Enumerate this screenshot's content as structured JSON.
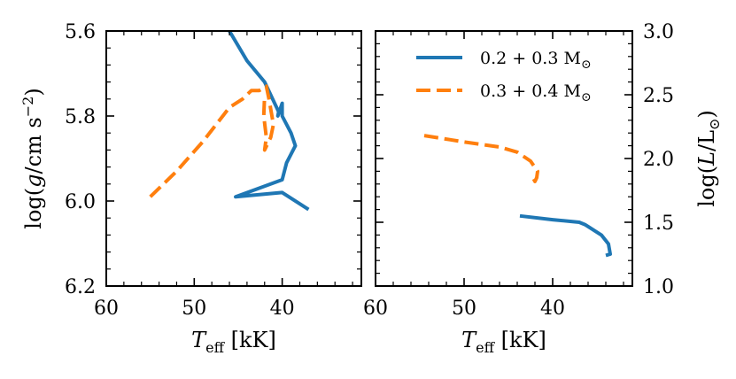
{
  "colors": {
    "blue": "#1f77b4",
    "orange": "#ff7f0e"
  },
  "chart_data": [
    {
      "type": "line",
      "panel": "left",
      "xlabel": "T_eff [kK]",
      "ylabel": "log(g / cm s^-2)",
      "xlim": [
        60,
        31
      ],
      "ylim": [
        6.2,
        5.6
      ],
      "y_inverted": true,
      "x_ticks": [
        60,
        50,
        40
      ],
      "x_tick_labels": [
        "60",
        "50",
        "40"
      ],
      "y_ticks": [
        5.6,
        5.8,
        6.0,
        6.2
      ],
      "y_tick_labels": [
        "5.6",
        "5.8",
        "6.0",
        "6.2"
      ],
      "y_tick_side": "left",
      "series": [
        {
          "color": "#1f77b4",
          "dash": "solid",
          "x": [
            37.0,
            40.0,
            45.3,
            40.0,
            39.5,
            38.5,
            39.0,
            40.0,
            40.0,
            40.5,
            40.4,
            42.0,
            44.0,
            46.0,
            48.0
          ],
          "y": [
            6.02,
            5.98,
            5.99,
            5.95,
            5.91,
            5.87,
            5.84,
            5.8,
            5.77,
            5.8,
            5.79,
            5.72,
            5.67,
            5.6,
            5.53
          ]
        },
        {
          "color": "#ff7f0e",
          "dash": "dashed",
          "x": [
            55.0,
            52.0,
            49.0,
            46.0,
            44.5,
            43.5,
            42.6,
            41.8,
            41.5,
            41.0,
            41.3,
            42.0,
            41.8,
            42.1,
            42.0
          ],
          "y": [
            5.99,
            5.93,
            5.86,
            5.78,
            5.76,
            5.74,
            5.74,
            5.73,
            5.76,
            5.82,
            5.85,
            5.88,
            5.85,
            5.8,
            5.75
          ]
        }
      ]
    },
    {
      "type": "line",
      "panel": "right",
      "xlabel": "T_eff [kK]",
      "ylabel": "log(L / L_sun)",
      "xlim": [
        60,
        31
      ],
      "ylim": [
        1.0,
        3.0
      ],
      "x_ticks": [
        60,
        50,
        40
      ],
      "x_tick_labels": [
        "60",
        "50",
        "40"
      ],
      "y_ticks": [
        1.0,
        1.5,
        2.0,
        2.5,
        3.0
      ],
      "y_tick_labels": [
        "1.0",
        "1.5",
        "2.0",
        "2.5",
        "3.0"
      ],
      "y_tick_side": "right",
      "legend": {
        "placement": "top-right",
        "entries": [
          {
            "label": "0.2 + 0.3 M_sun",
            "color": "#1f77b4",
            "dash": "solid"
          },
          {
            "label": "0.3 + 0.4 M_sun",
            "color": "#ff7f0e",
            "dash": "dashed"
          }
        ]
      },
      "series": [
        {
          "name": "0.2 + 0.3 M_sun",
          "color": "#1f77b4",
          "dash": "solid",
          "x": [
            43.7,
            40.0,
            37.0,
            36.3,
            34.5,
            33.7,
            33.5,
            34.0
          ],
          "y": [
            1.55,
            1.52,
            1.5,
            1.48,
            1.4,
            1.33,
            1.25,
            1.24
          ]
        },
        {
          "name": "0.3 + 0.4 M_sun",
          "color": "#ff7f0e",
          "dash": "dashed",
          "x": [
            54.5,
            50.0,
            46.0,
            44.0,
            42.5,
            41.7,
            41.8,
            42.0,
            42.3
          ],
          "y": [
            2.18,
            2.13,
            2.09,
            2.05,
            1.98,
            1.9,
            1.85,
            1.82,
            1.86
          ]
        }
      ]
    }
  ]
}
